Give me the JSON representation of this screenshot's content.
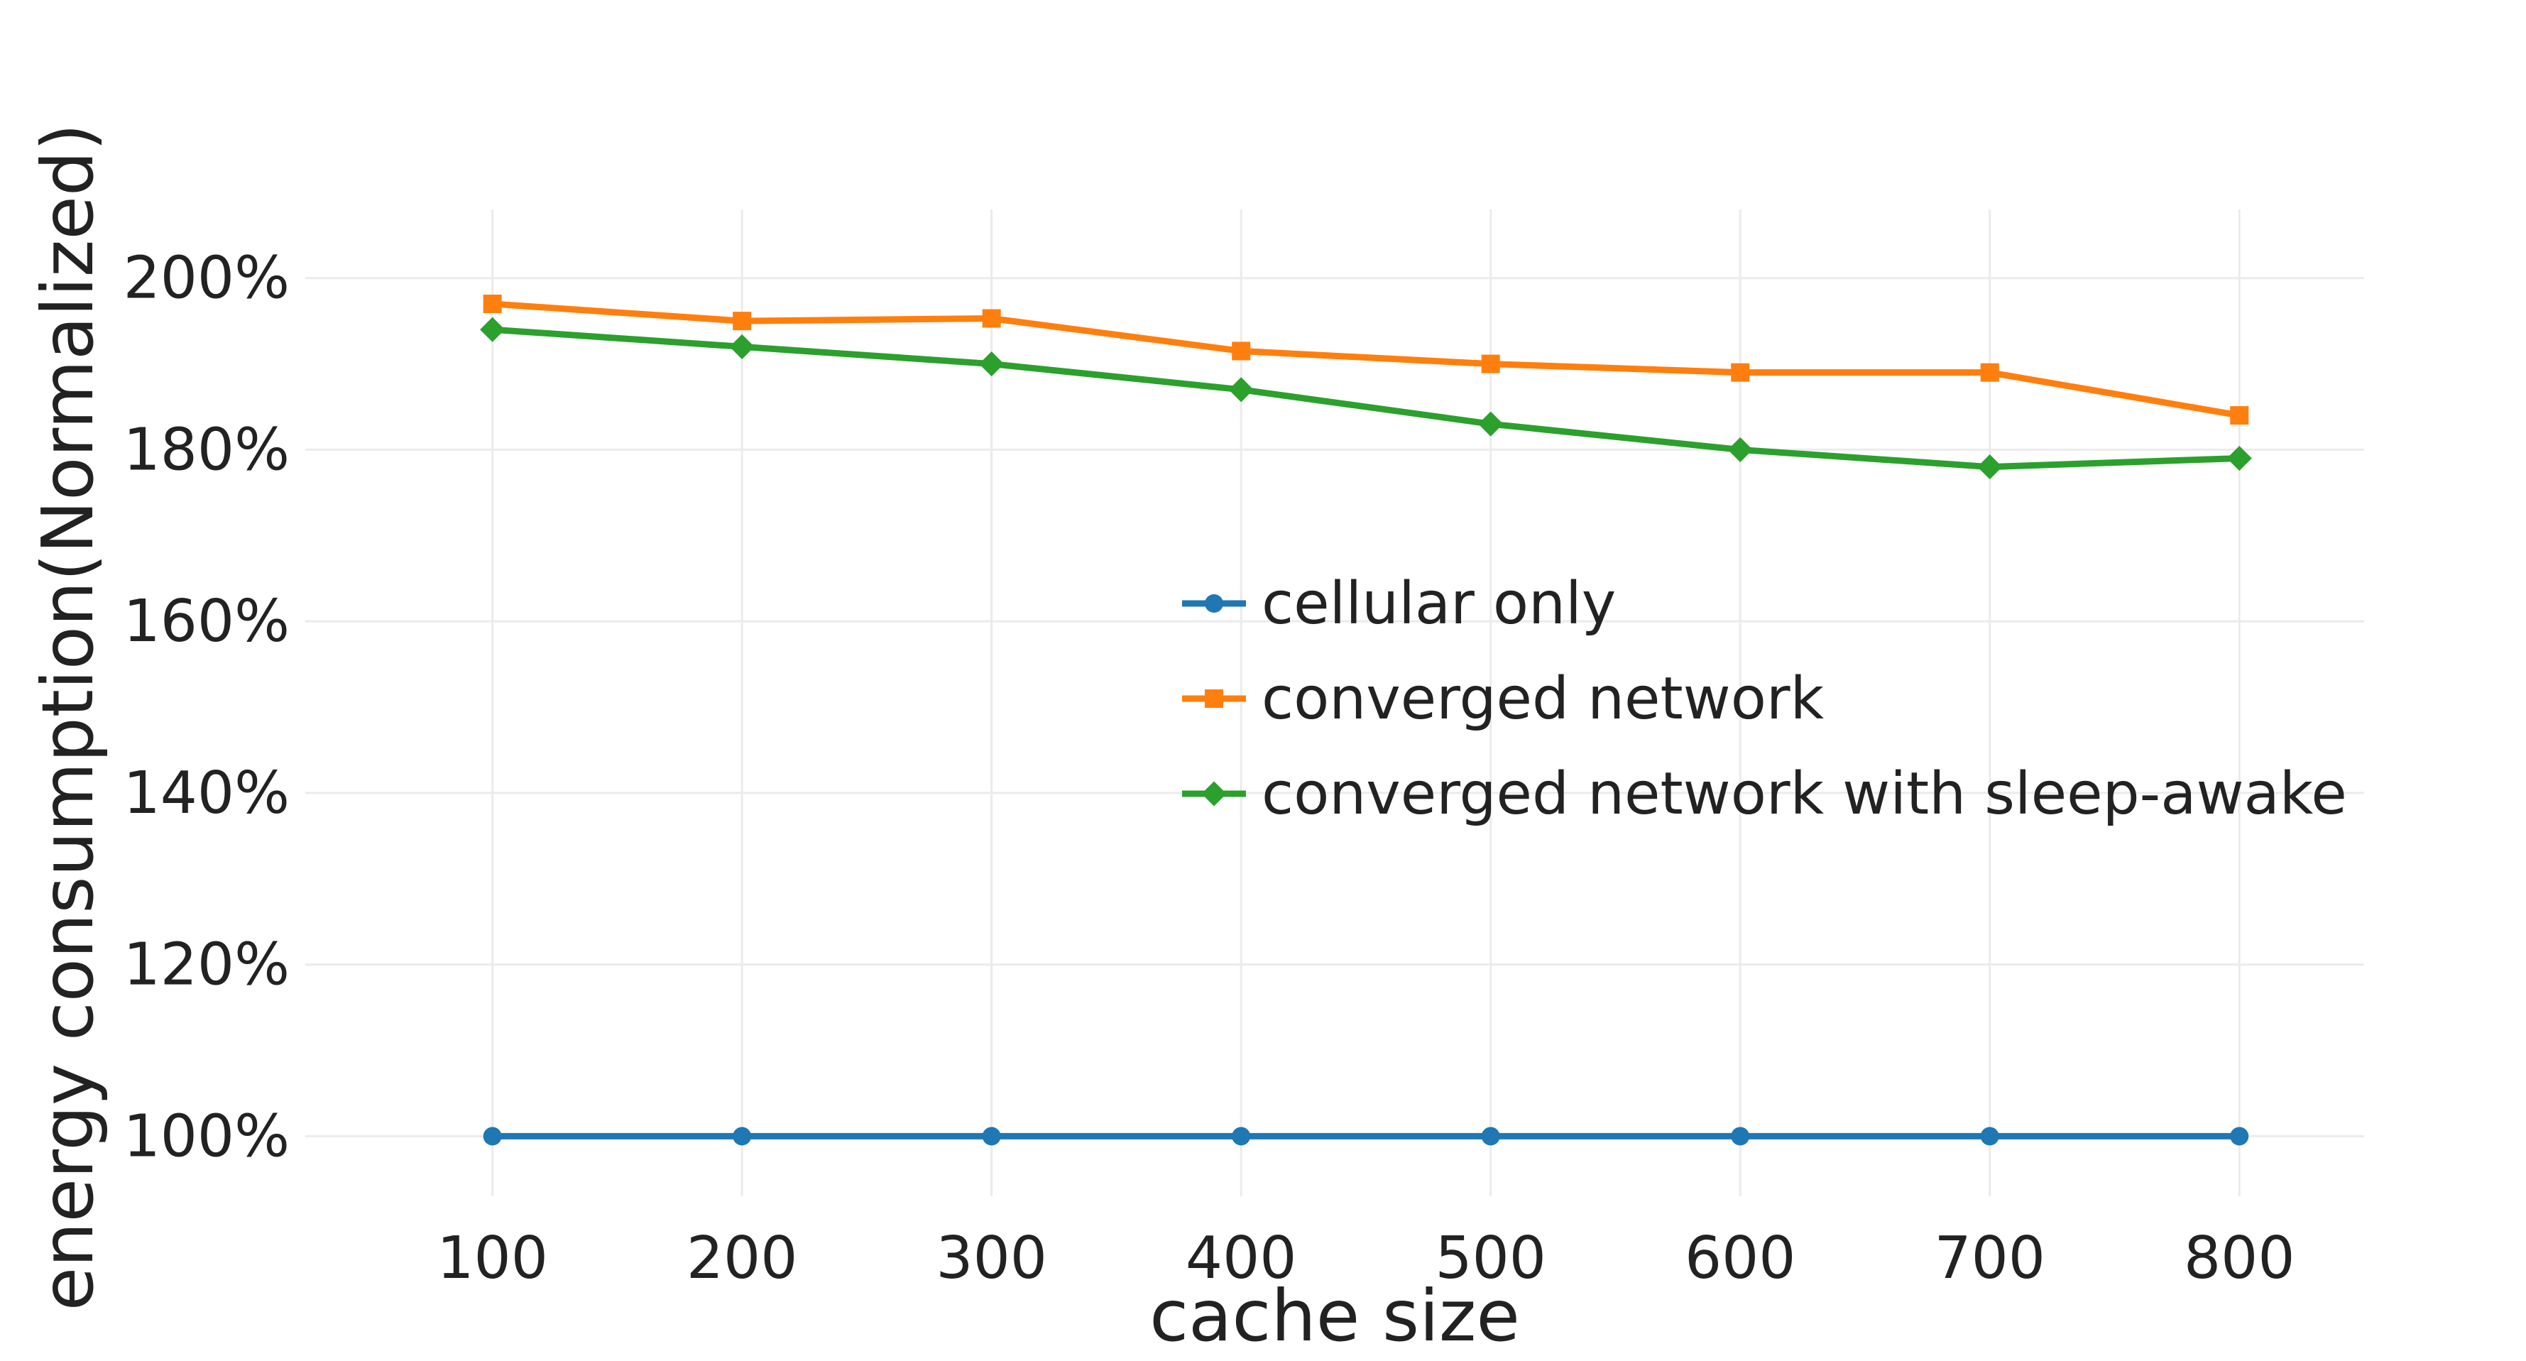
{
  "chart_data": {
    "type": "line",
    "title": "",
    "xlabel": "cache size",
    "ylabel": "energy consumption(Normalized)",
    "x": [
      100,
      200,
      300,
      400,
      500,
      600,
      700,
      800
    ],
    "x_tick_labels": [
      "100",
      "200",
      "300",
      "400",
      "500",
      "600",
      "700",
      "800"
    ],
    "y_tick_values": [
      100,
      120,
      140,
      160,
      180,
      200
    ],
    "y_tick_labels": [
      "100%",
      "120%",
      "140%",
      "160%",
      "180%",
      "200%"
    ],
    "xlim": [
      25,
      850
    ],
    "ylim": [
      93,
      208
    ],
    "grid": true,
    "legend_position": "center-right",
    "series": [
      {
        "name": "cellular only",
        "color": "#1f77b4",
        "marker": "circle",
        "values": [
          100,
          100,
          100,
          100,
          100,
          100,
          100,
          100
        ]
      },
      {
        "name": "converged network",
        "color": "#ff7f0e",
        "marker": "square",
        "values": [
          197,
          195,
          195.3,
          191.5,
          190,
          189,
          189,
          184
        ]
      },
      {
        "name": "converged network with sleep-awake",
        "color": "#2ca02c",
        "marker": "diamond",
        "values": [
          194,
          192,
          190,
          187,
          183,
          180,
          178,
          179
        ]
      }
    ]
  }
}
